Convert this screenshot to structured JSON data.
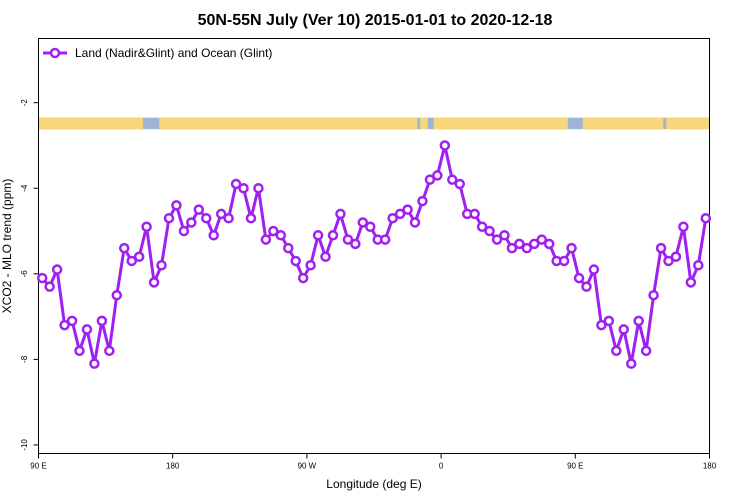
{
  "chart_data": {
    "type": "line",
    "title": "50N-55N July (Ver 10)   2015-01-01 to 2020-12-18",
    "xlabel": "Longitude (deg E)",
    "ylabel": "XCO2 - MLO trend (ppm)",
    "x_ticks": [
      {
        "value": 90,
        "label": "90 E"
      },
      {
        "value": 180,
        "label": "180"
      },
      {
        "value": 270,
        "label": "90 W"
      },
      {
        "value": 360,
        "label": "0"
      },
      {
        "value": 450,
        "label": "90 E"
      },
      {
        "value": 540,
        "label": "180"
      }
    ],
    "y_ticks": [
      {
        "value": -2,
        "label": "-2"
      },
      {
        "value": -4,
        "label": "-4"
      },
      {
        "value": -6,
        "label": "-6"
      },
      {
        "value": -8,
        "label": "-8"
      },
      {
        "value": -10,
        "label": "-10"
      }
    ],
    "xlim": [
      90,
      540
    ],
    "ylim": [
      -10.2,
      -0.5
    ],
    "grid": false,
    "legend_position": "top-left",
    "series": [
      {
        "name": "Land (Nadir&Glint) and Ocean (Glint)",
        "color": "#a020f0",
        "x": [
          92.5,
          97.5,
          102.5,
          107.5,
          112.5,
          117.5,
          122.5,
          127.5,
          132.5,
          137.5,
          142.5,
          147.5,
          152.5,
          157.5,
          162.5,
          167.5,
          172.5,
          177.5,
          182.5,
          187.5,
          192.5,
          197.5,
          202.5,
          207.5,
          212.5,
          217.5,
          222.5,
          227.5,
          232.5,
          237.5,
          242.5,
          247.5,
          252.5,
          257.5,
          262.5,
          267.5,
          272.5,
          277.5,
          282.5,
          287.5,
          292.5,
          297.5,
          302.5,
          307.5,
          312.5,
          317.5,
          322.5,
          327.5,
          332.5,
          337.5,
          342.5,
          347.5,
          352.5,
          357.5,
          362.5,
          367.5,
          372.5,
          377.5,
          382.5,
          387.5,
          392.5,
          397.5,
          402.5,
          407.5,
          412.5,
          417.5,
          422.5,
          427.5,
          432.5,
          437.5,
          442.5,
          447.5,
          452.5,
          457.5,
          462.5,
          467.5,
          472.5,
          477.5,
          482.5,
          487.5,
          492.5,
          497.5,
          502.5,
          507.5,
          512.5,
          517.5,
          522.5,
          527.5,
          532.5,
          537.5
        ],
        "y": [
          -6.1,
          -6.3,
          -5.9,
          -7.2,
          -7.1,
          -7.8,
          -7.3,
          -8.1,
          -7.1,
          -7.8,
          -6.5,
          -5.4,
          -5.7,
          -5.6,
          -4.9,
          -6.2,
          -5.8,
          -4.7,
          -4.4,
          -5.0,
          -4.8,
          -4.5,
          -4.7,
          -5.1,
          -4.6,
          -4.7,
          -3.9,
          -4.0,
          -4.7,
          -4.0,
          -5.2,
          -5.0,
          -5.1,
          -5.4,
          -5.7,
          -6.1,
          -5.8,
          -5.1,
          -5.6,
          -5.1,
          -4.6,
          -5.2,
          -5.3,
          -4.8,
          -4.9,
          -5.2,
          -5.2,
          -4.7,
          -4.6,
          -4.5,
          -4.8,
          -4.3,
          -3.8,
          -3.7,
          -3.0,
          -3.8,
          -3.9,
          -4.6,
          -4.6,
          -4.9,
          -5.0,
          -5.2,
          -5.1,
          -5.4,
          -5.3,
          -5.4,
          -5.3,
          -5.2,
          -5.3,
          -5.7,
          -5.7,
          -5.4,
          -6.1,
          -6.3,
          -5.9,
          -7.2,
          -7.1,
          -7.8,
          -7.3,
          -8.1,
          -7.1,
          -7.8,
          -6.5,
          -5.4,
          -5.7,
          -5.6,
          -4.9,
          -6.2,
          -5.8,
          -4.7
        ]
      }
    ],
    "land_ocean_band": {
      "ocean_color": "#9fb4d6",
      "land_color": "#f7d77a",
      "y_range": [
        -2.35,
        -2.62
      ],
      "land_segments": [
        [
          90,
          152
        ],
        [
          152,
          160
        ],
        [
          171,
          344
        ],
        [
          346,
          351
        ],
        [
          355,
          360
        ],
        [
          360,
          445
        ],
        [
          455,
          509
        ],
        [
          511,
          540
        ]
      ]
    }
  }
}
